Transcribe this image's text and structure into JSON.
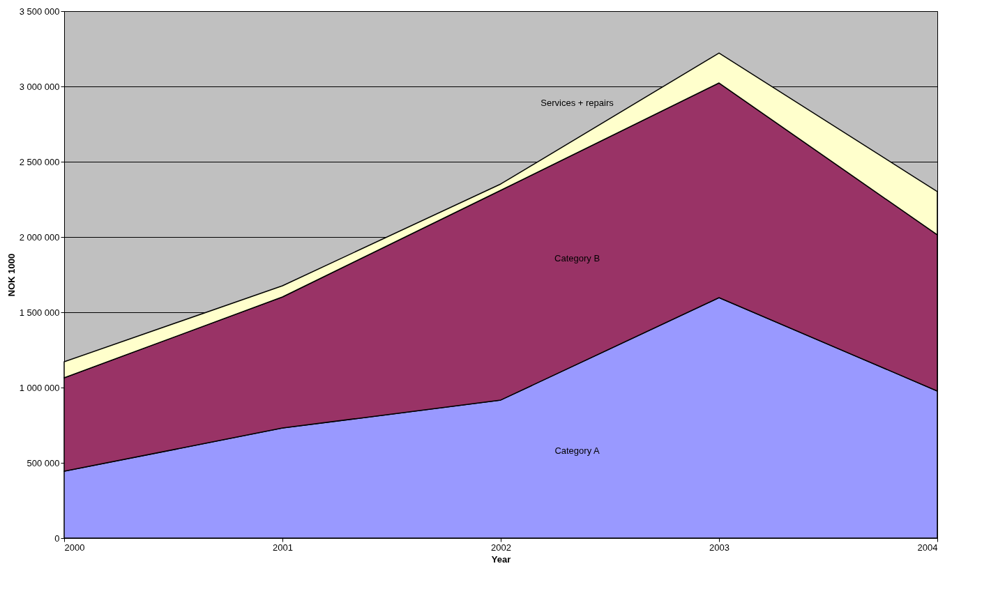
{
  "chart_data": {
    "type": "area",
    "stacked": true,
    "xlabel": "Year",
    "ylabel": "NOK 1000",
    "x": [
      2000,
      2001,
      2002,
      2003,
      2004
    ],
    "xlim": [
      2000,
      2004
    ],
    "xticks": [
      2000,
      2001,
      2002,
      2003,
      2004
    ],
    "ylim": [
      0,
      3500000
    ],
    "yticks": [
      {
        "value": 0,
        "label": "0"
      },
      {
        "value": 500000,
        "label": "500 000"
      },
      {
        "value": 1000000,
        "label": "1 000 000"
      },
      {
        "value": 1500000,
        "label": "1 500 000"
      },
      {
        "value": 2000000,
        "label": "2 000 000"
      },
      {
        "value": 2500000,
        "label": "2 500 000"
      },
      {
        "value": 3000000,
        "label": "3 000 000"
      },
      {
        "value": 3500000,
        "label": "3 500 000"
      }
    ],
    "grid": "y",
    "series": [
      {
        "name": "Category A",
        "color": "#9999ff",
        "values": [
          444000,
          731000,
          917000,
          1597000,
          977000
        ]
      },
      {
        "name": "Category B",
        "color": "#993366",
        "values": [
          621000,
          871000,
          1393000,
          1426000,
          1037000
        ]
      },
      {
        "name": "Services + repairs",
        "color": "#ffffcc",
        "values": [
          106000,
          74000,
          42000,
          199000,
          287000
        ]
      }
    ]
  }
}
